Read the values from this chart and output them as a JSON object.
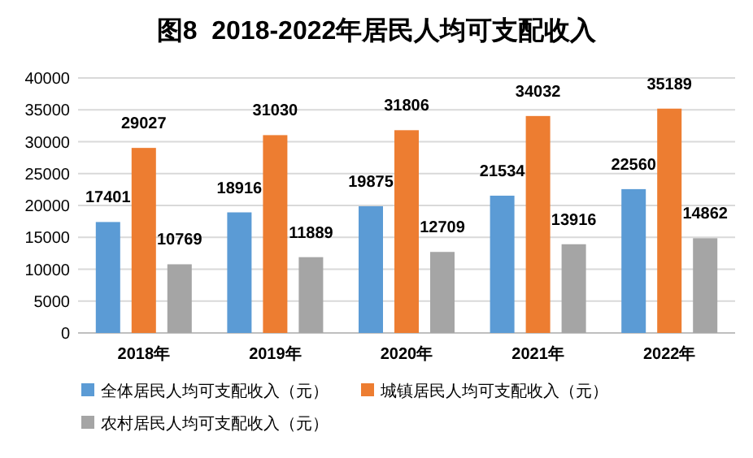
{
  "chart_data": {
    "type": "bar",
    "title": "图8  2018-2022年居民人均可支配收入",
    "categories": [
      "2018年",
      "2019年",
      "2020年",
      "2021年",
      "2022年"
    ],
    "series": [
      {
        "name": "全体居民人均可支配收入（元）",
        "color": "#5b9bd5",
        "values": [
          17401,
          18916,
          19875,
          21534,
          22560
        ]
      },
      {
        "name": "城镇居民人均可支配收入（元）",
        "color": "#ed7d31",
        "values": [
          29027,
          31030,
          31806,
          34032,
          35189
        ]
      },
      {
        "name": "农村居民人均可支配收入（元）",
        "color": "#a5a5a5",
        "values": [
          10769,
          11889,
          12709,
          13916,
          14862
        ]
      }
    ],
    "ylim": [
      0,
      40000
    ],
    "yticks": [
      0,
      5000,
      10000,
      15000,
      20000,
      25000,
      30000,
      35000,
      40000
    ],
    "grid": "y",
    "legend": "bottom",
    "data_labels": true
  }
}
